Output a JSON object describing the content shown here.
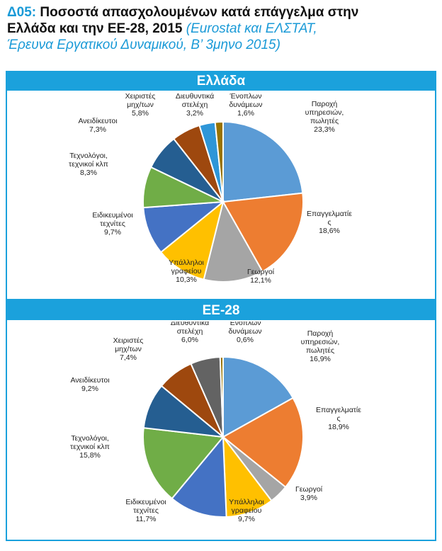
{
  "header": {
    "code": "Δ05:",
    "title_line1": "Ποσοστά απασχολουμένων κατά επάγγελμα στην",
    "title_line2": "Ελλάδα και την ΕΕ-28, 2015",
    "source_line1": "(Eurostat και ΕΛΣΤΑΤ,",
    "source_line2": "Έρευνα Εργατικού Δυναμικού, Β’ 3μηνο 2015)"
  },
  "chart_data": [
    {
      "type": "pie",
      "title": "Ελλάδα",
      "start_angle_deg": 0,
      "direction": "clockwise",
      "slices": [
        {
          "label": [
            "Παροχή",
            "υπηρεσιών,",
            "πωλητές"
          ],
          "value": 23.3,
          "value_label": "23,3%",
          "color": "#5b9bd5"
        },
        {
          "label": [
            "Επαγγελματίε",
            "ς"
          ],
          "value": 18.6,
          "value_label": "18,6%",
          "color": "#ed7d31"
        },
        {
          "label": [
            "Γεωργοί"
          ],
          "value": 12.1,
          "value_label": "12,1%",
          "color": "#a5a5a5"
        },
        {
          "label": [
            "Υπάλληλοι",
            "γραφείου"
          ],
          "value": 10.3,
          "value_label": "10,3%",
          "color": "#ffc000"
        },
        {
          "label": [
            "Ειδικευμένοι",
            "τεχνίτες"
          ],
          "value": 9.7,
          "value_label": "9,7%",
          "color": "#4472c4"
        },
        {
          "label": [
            "Τεχνολόγοι,",
            "τεχνικοί κλπ"
          ],
          "value": 8.3,
          "value_label": "8,3%",
          "color": "#70ad47"
        },
        {
          "label": [
            "Ανειδίκευτοι"
          ],
          "value": 7.3,
          "value_label": "7,3%",
          "color": "#255e91"
        },
        {
          "label": [
            "Χειριστές",
            "μηχ/των"
          ],
          "value": 5.8,
          "value_label": "5,8%",
          "color": "#9e480e"
        },
        {
          "label": [
            "Διευθυντικά",
            "στελέχη"
          ],
          "value": 3.2,
          "value_label": "3,2%",
          "color": "#2e96d8"
        },
        {
          "label": [
            "Ένοπλων",
            "δυνάμεων"
          ],
          "value": 1.6,
          "value_label": "1,6%",
          "color": "#997300"
        }
      ]
    },
    {
      "type": "pie",
      "title": "ΕΕ-28",
      "start_angle_deg": 0,
      "direction": "clockwise",
      "slices": [
        {
          "label": [
            "Παροχή",
            "υπηρεσιών,",
            "πωλητές"
          ],
          "value": 16.9,
          "value_label": "16,9%",
          "color": "#5b9bd5"
        },
        {
          "label": [
            "Επαγγελματίε",
            "ς"
          ],
          "value": 18.9,
          "value_label": "18,9%",
          "color": "#ed7d31"
        },
        {
          "label": [
            "Γεωργοί"
          ],
          "value": 3.9,
          "value_label": "3,9%",
          "color": "#a5a5a5"
        },
        {
          "label": [
            "Υπάλληλοι",
            "γραφείου"
          ],
          "value": 9.7,
          "value_label": "9,7%",
          "color": "#ffc000"
        },
        {
          "label": [
            "Ειδικευμένοι",
            "τεχνίτες"
          ],
          "value": 11.7,
          "value_label": "11,7%",
          "color": "#4472c4"
        },
        {
          "label": [
            "Τεχνολόγοι,",
            "τεχνικοί κλπ"
          ],
          "value": 15.8,
          "value_label": "15,8%",
          "color": "#70ad47"
        },
        {
          "label": [
            "Ανειδίκευτοι"
          ],
          "value": 9.2,
          "value_label": "9,2%",
          "color": "#255e91"
        },
        {
          "label": [
            "Χειριστές",
            "μηχ/των"
          ],
          "value": 7.4,
          "value_label": "7,4%",
          "color": "#9e480e"
        },
        {
          "label": [
            "Διευθυντικά",
            "στελέχη"
          ],
          "value": 6.0,
          "value_label": "6,0%",
          "color": "#636363"
        },
        {
          "label": [
            "Ένοπλων",
            "δυνάμεων"
          ],
          "value": 0.6,
          "value_label": "0,6%",
          "color": "#997300"
        }
      ]
    }
  ]
}
